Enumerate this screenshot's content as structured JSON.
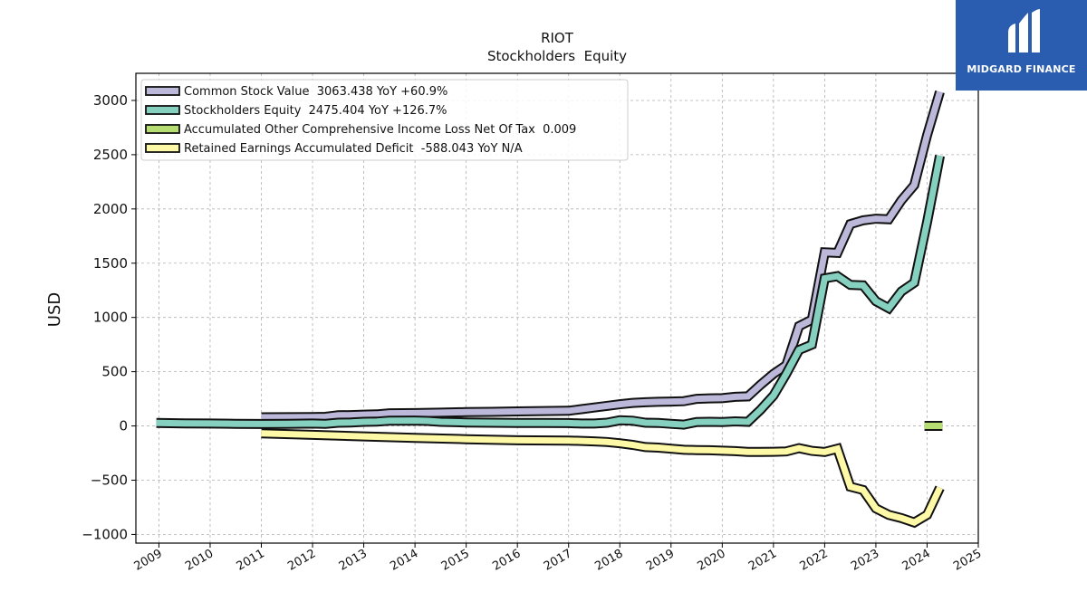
{
  "brand": {
    "name": "MIDGARD FINANCE",
    "logo_icon": "midgard-logo-icon",
    "color": "#2a5db0"
  },
  "chart_data": {
    "type": "line",
    "title": "RIOT",
    "subtitle": "Stockholders  Equity",
    "ylabel": "USD",
    "xlabel": "",
    "xlim": [
      2008.55,
      2025.0
    ],
    "ylim": [
      -1080,
      3250
    ],
    "x_ticks": [
      2009,
      2010,
      2011,
      2012,
      2013,
      2014,
      2015,
      2016,
      2017,
      2018,
      2019,
      2020,
      2021,
      2022,
      2023,
      2024,
      2025
    ],
    "y_ticks": [
      -1000,
      -500,
      0,
      500,
      1000,
      1500,
      2000,
      2500,
      3000
    ],
    "y_tick_labels": [
      "−1000",
      "−500",
      "0",
      "500",
      "1000",
      "1500",
      "2000",
      "2500",
      "3000"
    ],
    "grid": true,
    "legend_position": "top-left",
    "series": [
      {
        "name": "Common Stock Value  3063.438 YoY +60.9%",
        "color": "#bcb8da",
        "points": [
          [
            2011.0,
            80
          ],
          [
            2012.0,
            82
          ],
          [
            2012.25,
            84
          ],
          [
            2012.5,
            98
          ],
          [
            2012.75,
            100
          ],
          [
            2013.0,
            104
          ],
          [
            2013.25,
            106
          ],
          [
            2013.5,
            116
          ],
          [
            2014.0,
            118
          ],
          [
            2014.5,
            122
          ],
          [
            2015.0,
            127
          ],
          [
            2015.5,
            130
          ],
          [
            2016.0,
            134
          ],
          [
            2016.5,
            137
          ],
          [
            2017.0,
            140
          ],
          [
            2017.25,
            155
          ],
          [
            2017.5,
            170
          ],
          [
            2017.75,
            185
          ],
          [
            2018.0,
            200
          ],
          [
            2018.25,
            212
          ],
          [
            2018.5,
            218
          ],
          [
            2018.75,
            222
          ],
          [
            2019.0,
            225
          ],
          [
            2019.25,
            228
          ],
          [
            2019.5,
            250
          ],
          [
            2019.75,
            254
          ],
          [
            2020.0,
            256
          ],
          [
            2020.25,
            268
          ],
          [
            2020.5,
            272
          ],
          [
            2020.75,
            380
          ],
          [
            2021.0,
            480
          ],
          [
            2021.25,
            560
          ],
          [
            2021.5,
            920
          ],
          [
            2021.75,
            980
          ],
          [
            2022.0,
            1600
          ],
          [
            2022.25,
            1595
          ],
          [
            2022.5,
            1860
          ],
          [
            2022.75,
            1895
          ],
          [
            2023.0,
            1910
          ],
          [
            2023.25,
            1905
          ],
          [
            2023.5,
            2080
          ],
          [
            2023.75,
            2220
          ],
          [
            2024.0,
            2680
          ],
          [
            2024.25,
            3080
          ]
        ]
      },
      {
        "name": "Stockholders Equity  2475.404 YoY +126.7%",
        "color": "#86d0c0",
        "points": [
          [
            2008.95,
            28
          ],
          [
            2009.5,
            24
          ],
          [
            2010.0,
            22
          ],
          [
            2010.5,
            20
          ],
          [
            2011.0,
            18
          ],
          [
            2011.5,
            20
          ],
          [
            2012.0,
            22
          ],
          [
            2012.25,
            20
          ],
          [
            2012.5,
            30
          ],
          [
            2012.75,
            32
          ],
          [
            2013.0,
            38
          ],
          [
            2013.25,
            40
          ],
          [
            2013.5,
            48
          ],
          [
            2014.0,
            50
          ],
          [
            2014.25,
            46
          ],
          [
            2014.5,
            38
          ],
          [
            2015.0,
            32
          ],
          [
            2015.5,
            30
          ],
          [
            2016.0,
            28
          ],
          [
            2016.5,
            28
          ],
          [
            2017.0,
            26
          ],
          [
            2017.25,
            22
          ],
          [
            2017.5,
            22
          ],
          [
            2017.75,
            30
          ],
          [
            2018.0,
            52
          ],
          [
            2018.25,
            48
          ],
          [
            2018.5,
            30
          ],
          [
            2018.75,
            28
          ],
          [
            2019.0,
            20
          ],
          [
            2019.25,
            12
          ],
          [
            2019.5,
            36
          ],
          [
            2019.75,
            38
          ],
          [
            2020.0,
            36
          ],
          [
            2020.25,
            42
          ],
          [
            2020.5,
            38
          ],
          [
            2020.75,
            150
          ],
          [
            2021.0,
            280
          ],
          [
            2021.25,
            480
          ],
          [
            2021.5,
            700
          ],
          [
            2021.75,
            750
          ],
          [
            2022.0,
            1360
          ],
          [
            2022.25,
            1380
          ],
          [
            2022.5,
            1300
          ],
          [
            2022.75,
            1295
          ],
          [
            2023.0,
            1150
          ],
          [
            2023.25,
            1085
          ],
          [
            2023.5,
            1240
          ],
          [
            2023.75,
            1320
          ],
          [
            2024.0,
            1880
          ],
          [
            2024.25,
            2490
          ]
        ]
      },
      {
        "name": "Accumulated Other Comprehensive Income Loss Net Of Tax  0.009",
        "color": "#b5dd72",
        "points": [
          [
            2023.95,
            0
          ],
          [
            2024.3,
            0
          ]
        ]
      },
      {
        "name": "Retained Earnings Accumulated Deficit  -588.043 YoY N/A",
        "color": "#fdf9a6",
        "points": [
          [
            2011.0,
            -68
          ],
          [
            2012.0,
            -82
          ],
          [
            2013.0,
            -96
          ],
          [
            2014.0,
            -110
          ],
          [
            2015.0,
            -122
          ],
          [
            2016.0,
            -132
          ],
          [
            2017.0,
            -135
          ],
          [
            2017.5,
            -142
          ],
          [
            2017.75,
            -148
          ],
          [
            2018.0,
            -160
          ],
          [
            2018.25,
            -175
          ],
          [
            2018.5,
            -195
          ],
          [
            2018.75,
            -200
          ],
          [
            2019.0,
            -210
          ],
          [
            2019.25,
            -220
          ],
          [
            2019.5,
            -222
          ],
          [
            2019.75,
            -224
          ],
          [
            2020.0,
            -228
          ],
          [
            2020.25,
            -232
          ],
          [
            2020.5,
            -240
          ],
          [
            2020.75,
            -240
          ],
          [
            2021.0,
            -238
          ],
          [
            2021.25,
            -235
          ],
          [
            2021.5,
            -205
          ],
          [
            2021.75,
            -230
          ],
          [
            2022.0,
            -240
          ],
          [
            2022.25,
            -210
          ],
          [
            2022.5,
            -560
          ],
          [
            2022.75,
            -590
          ],
          [
            2023.0,
            -760
          ],
          [
            2023.25,
            -820
          ],
          [
            2023.5,
            -850
          ],
          [
            2023.75,
            -890
          ],
          [
            2024.0,
            -820
          ],
          [
            2024.25,
            -570
          ]
        ]
      }
    ]
  }
}
